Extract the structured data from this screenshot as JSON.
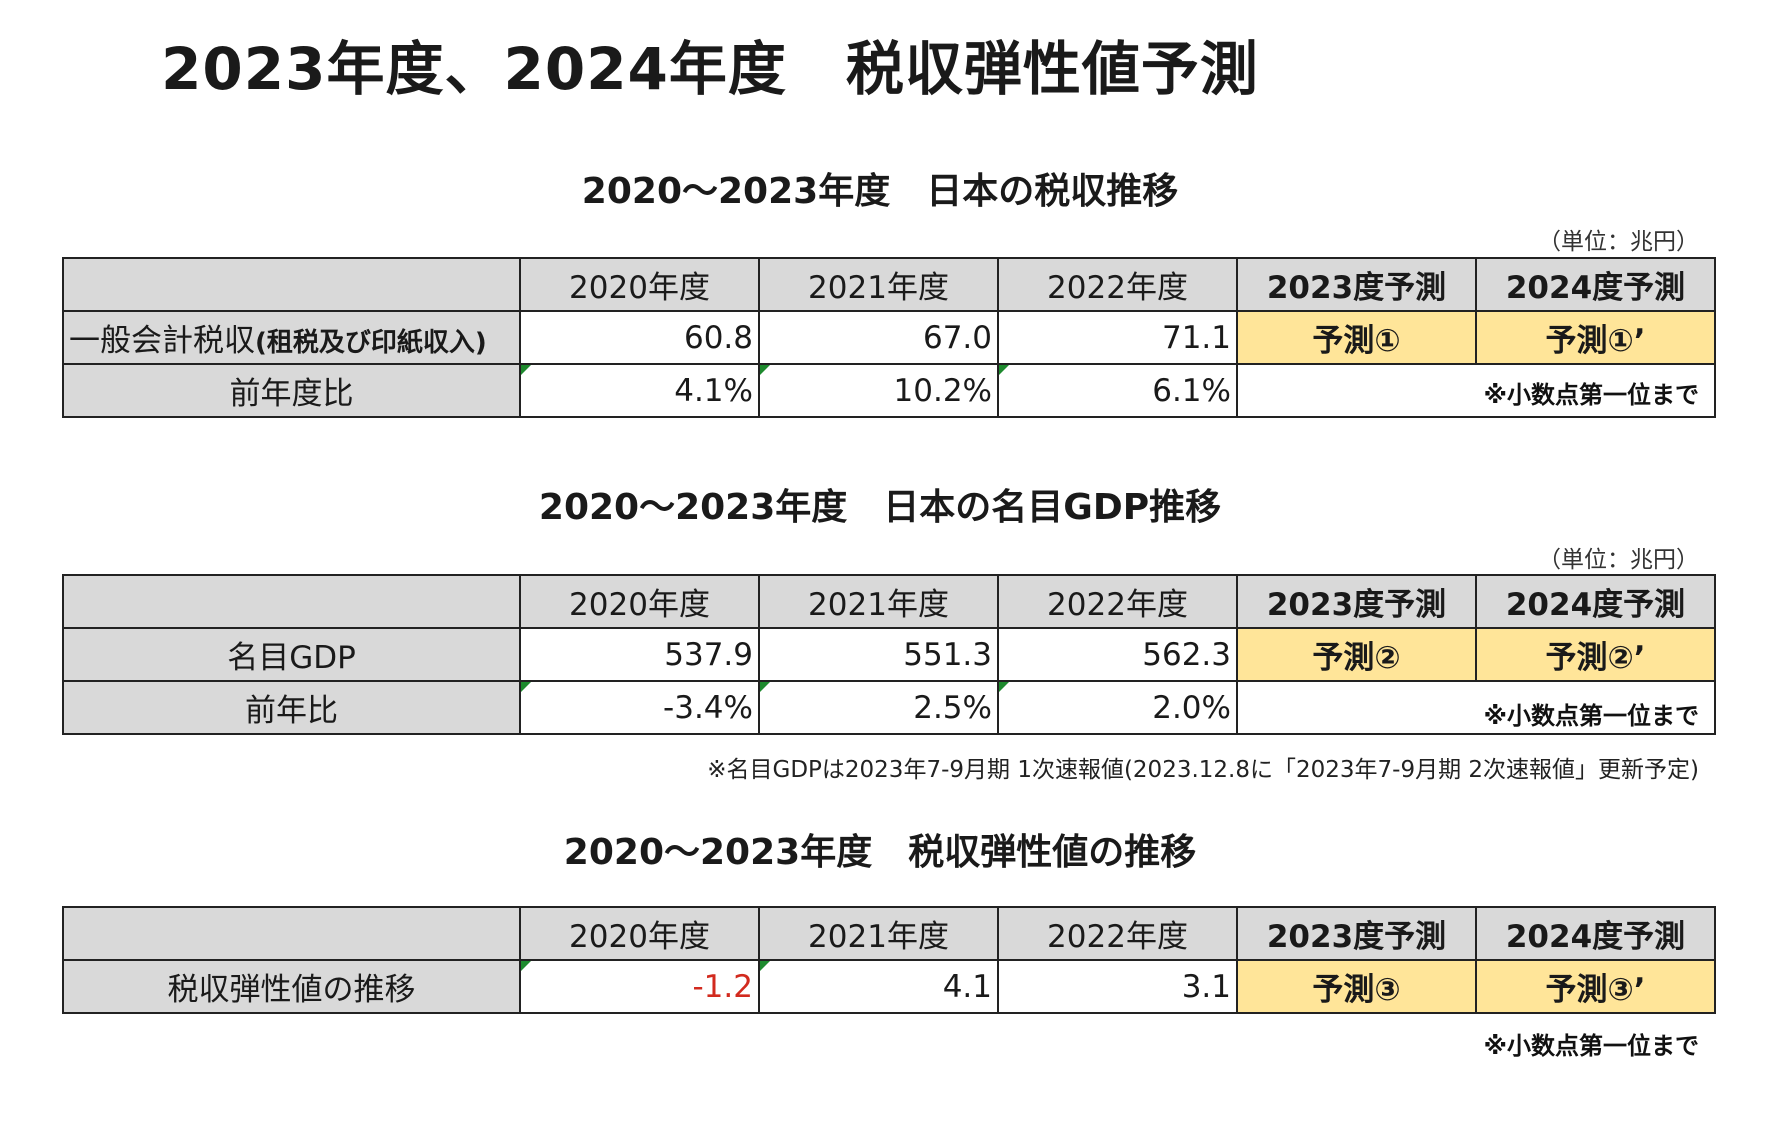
{
  "title": "2023年度、2024年度　税収弾性値予測",
  "tax_section": {
    "title": "2020～2023年度　日本の税収推移",
    "unit": "（単位：兆円）",
    "headers": [
      "",
      "2020年度",
      "2021年度",
      "2022年度",
      "2023度予測",
      "2024度予測"
    ],
    "row1_label_main": "一般会計税収",
    "row1_label_sub": "(租税及び印紙収入)",
    "row1_values": [
      "60.8",
      "67.0",
      "71.1"
    ],
    "row1_preds": [
      "予測①",
      "予測①’"
    ],
    "row2_label": "前年度比",
    "row2_values": [
      "4.1%",
      "10.2%",
      "6.1%"
    ],
    "note": "※小数点第一位まで"
  },
  "gdp_section": {
    "title": "2020～2023年度　日本の名目GDP推移",
    "unit": "（単位：兆円）",
    "headers": [
      "",
      "2020年度",
      "2021年度",
      "2022年度",
      "2023度予測",
      "2024度予測"
    ],
    "row1_label": "名目GDP",
    "row1_values": [
      "537.9",
      "551.3",
      "562.3"
    ],
    "row1_preds": [
      "予測②",
      "予測②’"
    ],
    "row2_label": "前年比",
    "row2_values": [
      "-3.4%",
      "2.5%",
      "2.0%"
    ],
    "note": "※小数点第一位まで",
    "footnote": "※名目GDPは2023年7-9月期 1次速報値(2023.12.8に「2023年7-9月期 2次速報値」更新予定)"
  },
  "elasticity_section": {
    "title": "2020～2023年度　税収弾性値の推移",
    "headers": [
      "",
      "2020年度",
      "2021年度",
      "2022年度",
      "2023度予測",
      "2024度予測"
    ],
    "row1_label": "税収弾性値の推移",
    "row1_values": [
      "-1.2",
      "4.1",
      "3.1"
    ],
    "row1_preds": [
      "予測③",
      "予測③’"
    ],
    "note": "※小数点第一位まで"
  },
  "colors": {
    "header_gray": "#d9d9d9",
    "prediction_yellow": "#ffe599",
    "negative_red": "#d22a1e",
    "error_flag_green": "#1e8a2e"
  }
}
